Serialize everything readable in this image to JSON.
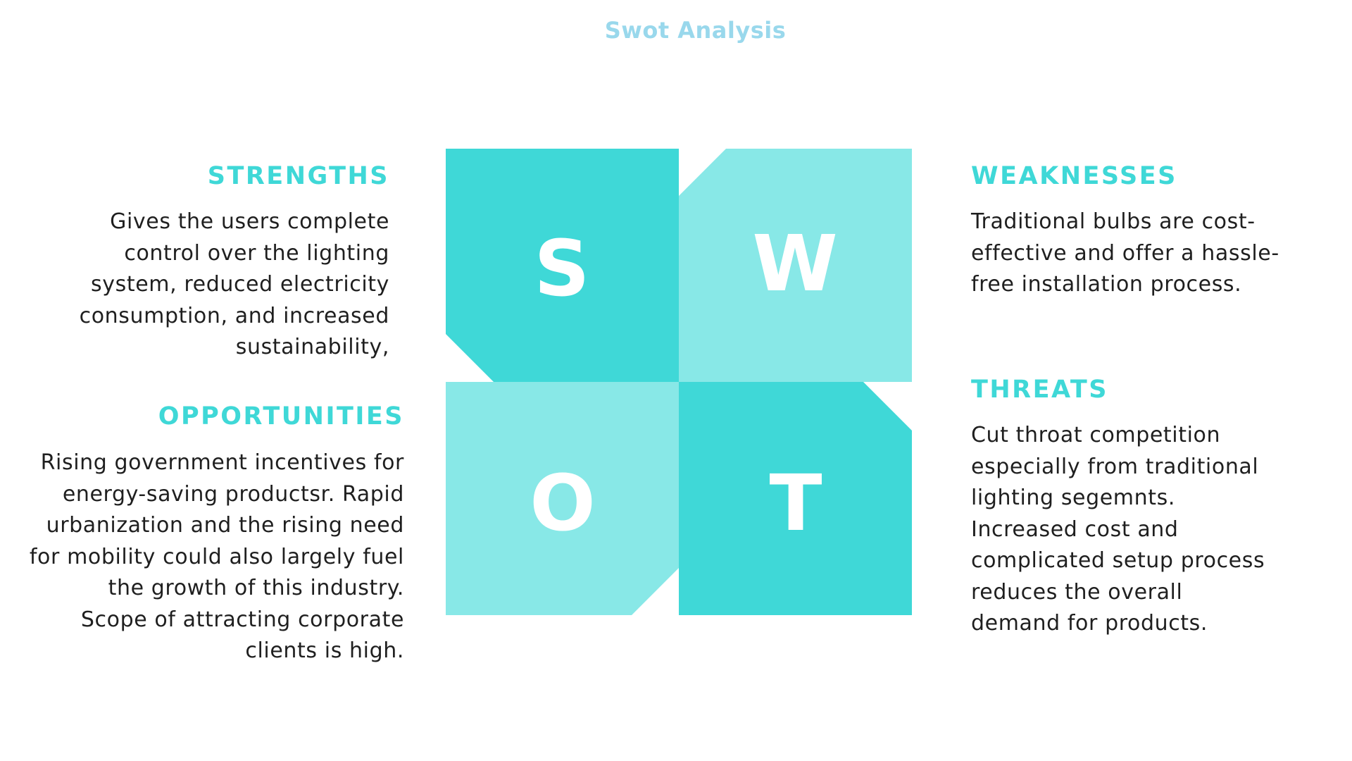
{
  "title": "Swot Analysis",
  "colors": {
    "title": "#99d8ec",
    "heading": "#3fd8d7",
    "dark_quadrant": "#3fd8d7",
    "light_quadrant": "#88e8e7",
    "body_text": "#1f1f1f"
  },
  "quadrants": {
    "s": {
      "letter": "S"
    },
    "w": {
      "letter": "W"
    },
    "o": {
      "letter": "O"
    },
    "t": {
      "letter": "T"
    }
  },
  "strengths": {
    "heading": "STRENGTHS",
    "text": "Gives the users complete\ncontrol over the lighting\nsystem, reduced electricity\nconsumption, and increased\nsustainability, "
  },
  "weaknesses": {
    "heading": "WEAKNESSES",
    "text": "Traditional bulbs are cost-\neffective and offer a hassle-\nfree installation process."
  },
  "opportunities": {
    "heading": "OPPORTUNITIES",
    "text": "Rising government incentives for\nenergy-saving productsr. Rapid\nurbanization and the rising need\nfor mobility could also largely fuel\nthe growth of this industry. \nScope of attracting corporate\nclients is high."
  },
  "threats": {
    "heading": "THREATS",
    "text": "Cut throat competition\nespecially from traditional\nlighting segemnts.\nIncreased cost and\ncomplicated setup process\nreduces the overall\ndemand for products."
  }
}
